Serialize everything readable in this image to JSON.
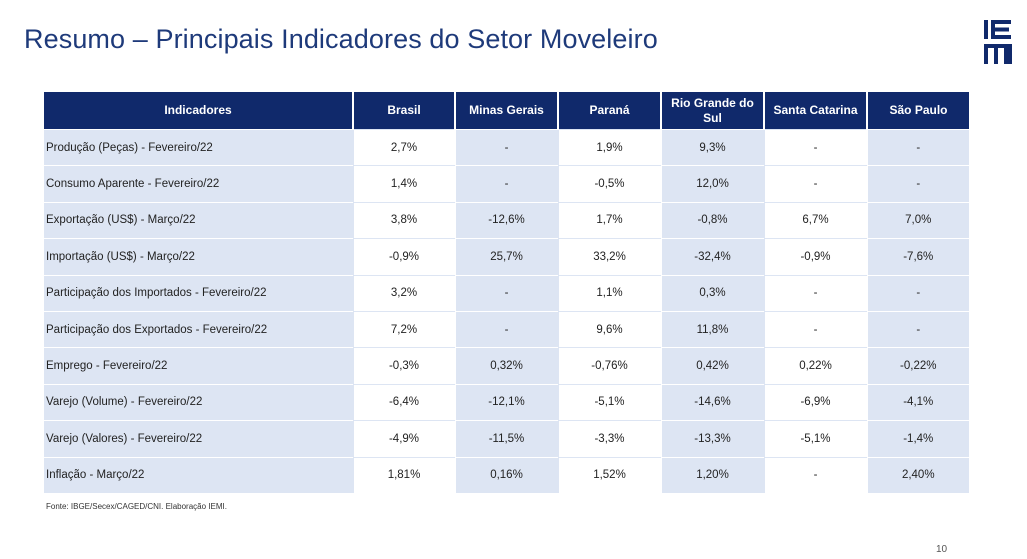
{
  "title": "Resumo – Principais Indicadores do Setor Moveleiro",
  "logo": {
    "text": "IEMI",
    "color": "#10296b"
  },
  "table": {
    "headers": [
      "Indicadores",
      "Brasil",
      "Minas Gerais",
      "Paraná",
      "Rio Grande do Sul",
      "Santa Catarina",
      "São Paulo"
    ],
    "rows": [
      [
        "Produção (Peças) - Fevereiro/22",
        "2,7%",
        "-",
        "1,9%",
        "9,3%",
        "-",
        "-"
      ],
      [
        "Consumo Aparente - Fevereiro/22",
        "1,4%",
        "-",
        "-0,5%",
        "12,0%",
        "-",
        "-"
      ],
      [
        "Exportação (US$) - Março/22",
        "3,8%",
        "-12,6%",
        "1,7%",
        "-0,8%",
        "6,7%",
        "7,0%"
      ],
      [
        "Importação (US$) - Março/22",
        "-0,9%",
        "25,7%",
        "33,2%",
        "-32,4%",
        "-0,9%",
        "-7,6%"
      ],
      [
        "Participação dos Importados - Fevereiro/22",
        "3,2%",
        "-",
        "1,1%",
        "0,3%",
        "-",
        "-"
      ],
      [
        "Participação dos Exportados - Fevereiro/22",
        "7,2%",
        "-",
        "9,6%",
        "11,8%",
        "-",
        "-"
      ],
      [
        "Emprego - Fevereiro/22",
        "-0,3%",
        "0,32%",
        "-0,76%",
        "0,42%",
        "0,22%",
        "-0,22%"
      ],
      [
        "Varejo (Volume) - Fevereiro/22",
        "-6,4%",
        "-12,1%",
        "-5,1%",
        "-14,6%",
        "-6,9%",
        "-4,1%"
      ],
      [
        "Varejo (Valores) - Fevereiro/22",
        "-4,9%",
        "-11,5%",
        "-3,3%",
        "-13,3%",
        "-5,1%",
        "-1,4%"
      ],
      [
        "Inflação - Março/22",
        "1,81%",
        "0,16%",
        "1,52%",
        "1,20%",
        "-",
        "2,40%"
      ]
    ]
  },
  "source": "Fonte: IBGE/Secex/CAGED/CNI. Elaboração IEMI.",
  "page_number": "10",
  "colors": {
    "header_bg": "#10296b",
    "row_tint": "#dde5f3",
    "title": "#1e3a7a"
  }
}
